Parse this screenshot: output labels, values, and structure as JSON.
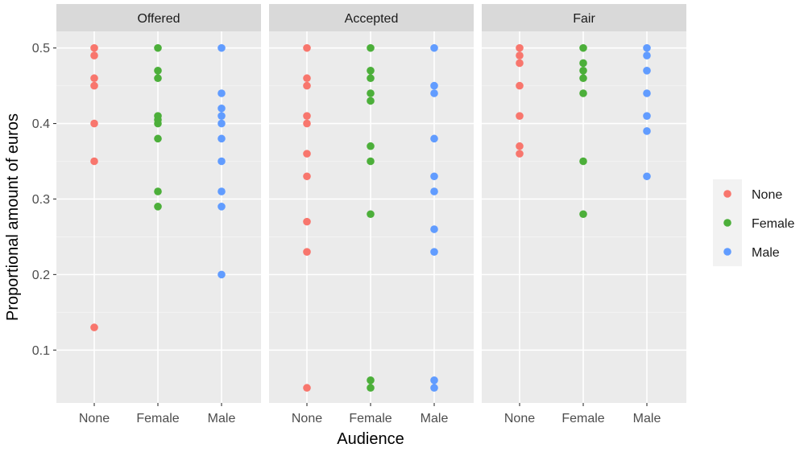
{
  "chart_data": {
    "type": "scatter",
    "facets": [
      "Offered",
      "Accepted",
      "Fair"
    ],
    "categories": [
      "None",
      "Female",
      "Male"
    ],
    "xlabel": "Audience",
    "ylabel": "Proportional amount of euros",
    "yticks": [
      0.1,
      0.2,
      0.3,
      0.4,
      0.5
    ],
    "ylim": [
      0.03,
      0.522
    ],
    "grid": true,
    "legend_position": "right",
    "series": [
      {
        "name": "None",
        "color": "#F8766D"
      },
      {
        "name": "Female",
        "color": "#4CAF3A"
      },
      {
        "name": "Male",
        "color": "#619CFF"
      }
    ],
    "panels": [
      {
        "facet": "Offered",
        "values": {
          "None": [
            0.5,
            0.49,
            0.46,
            0.45,
            0.4,
            0.35,
            0.13
          ],
          "Female": [
            0.5,
            0.47,
            0.46,
            0.41,
            0.405,
            0.4,
            0.38,
            0.31,
            0.29
          ],
          "Male": [
            0.5,
            0.44,
            0.42,
            0.41,
            0.4,
            0.38,
            0.35,
            0.31,
            0.29,
            0.2
          ]
        }
      },
      {
        "facet": "Accepted",
        "values": {
          "None": [
            0.5,
            0.46,
            0.45,
            0.41,
            0.4,
            0.36,
            0.33,
            0.27,
            0.23,
            0.05
          ],
          "Female": [
            0.5,
            0.47,
            0.46,
            0.44,
            0.43,
            0.37,
            0.35,
            0.28,
            0.06,
            0.05
          ],
          "Male": [
            0.5,
            0.45,
            0.44,
            0.38,
            0.33,
            0.31,
            0.26,
            0.23,
            0.06,
            0.05
          ]
        }
      },
      {
        "facet": "Fair",
        "values": {
          "None": [
            0.5,
            0.49,
            0.48,
            0.45,
            0.41,
            0.37,
            0.36
          ],
          "Female": [
            0.5,
            0.48,
            0.47,
            0.46,
            0.44,
            0.35,
            0.28
          ],
          "Male": [
            0.5,
            0.49,
            0.47,
            0.44,
            0.41,
            0.39,
            0.33
          ]
        }
      }
    ]
  }
}
